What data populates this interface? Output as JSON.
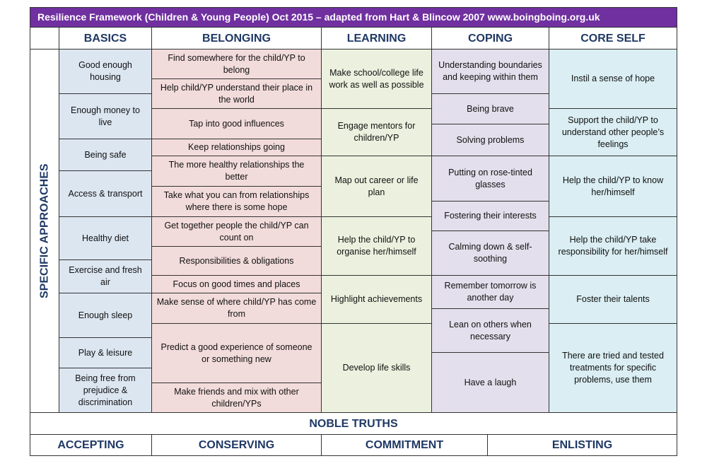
{
  "header": {
    "title": "Resilience Framework (Children & Young People) Oct 2015 – adapted from Hart & Blincow 2007 www.boingboing.org.uk"
  },
  "side_label": "SPECIFIC APPROACHES",
  "columns": [
    {
      "name": "BASICS",
      "cells": [
        "Good enough housing",
        "Enough money to live",
        "Being safe",
        "Access & transport",
        "Healthy diet",
        "Exercise and fresh air",
        "Enough sleep",
        "Play & leisure",
        "Being free from prejudice & discrimination"
      ]
    },
    {
      "name": "BELONGING",
      "cells": [
        "Find somewhere for the child/YP to belong",
        "Help child/YP understand their place in the world",
        "Tap into good influences",
        "Keep relationships going",
        "The more healthy relationships the better",
        "Take what you can from relationships where there is some hope",
        "Get together people the child/YP can count on",
        "Responsibilities & obligations",
        "Focus on good times and places",
        "Make sense of where child/YP has come from",
        "Predict a good experience of someone or something new",
        "Make friends and mix with other children/YPs"
      ]
    },
    {
      "name": "LEARNING",
      "cells": [
        "Make school/college life work as well as possible",
        "Engage mentors for children/YP",
        "Map out career or life plan",
        "Help the child/YP to organise her/himself",
        "Highlight achievements",
        "Develop life skills"
      ]
    },
    {
      "name": "COPING",
      "cells": [
        "Understanding boundaries and keeping within them",
        "Being brave",
        "Solving problems",
        "Putting on rose-tinted glasses",
        "Fostering their interests",
        "Calming down & self-soothing",
        "Remember tomorrow is another day",
        "Lean on others when necessary",
        "Have a laugh"
      ]
    },
    {
      "name": "CORE SELF",
      "cells": [
        "Instil a sense of hope",
        "Support the child/YP to understand other people’s feelings",
        "Help the child/YP to know her/himself",
        "Help the child/YP take responsibility for her/himself",
        "Foster their talents",
        "There are tried and tested treatments for specific problems, use them"
      ]
    }
  ],
  "footer": {
    "title": "NOBLE TRUTHS",
    "items": [
      "ACCEPTING",
      "CONSERVING",
      "COMMITMENT",
      "ENLISTING"
    ]
  }
}
